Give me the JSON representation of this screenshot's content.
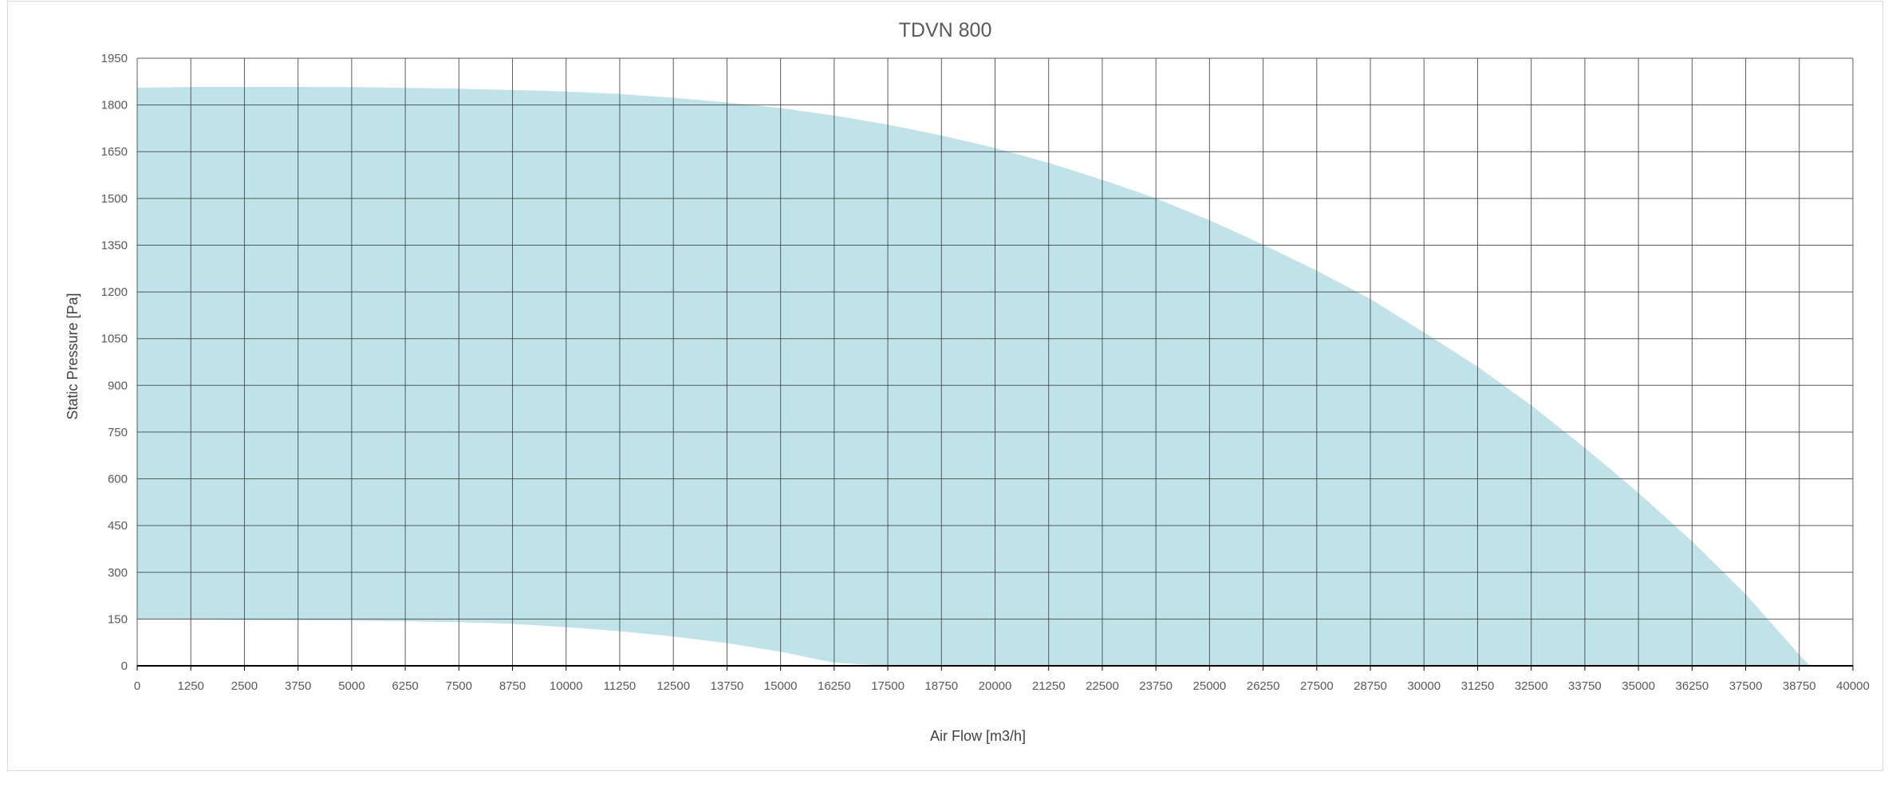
{
  "chart_data": {
    "type": "area",
    "title": "TDVN 800",
    "xlabel": "Air Flow [m3/h]",
    "ylabel": "Static Pressure [Pa]",
    "xlim": [
      0,
      40000
    ],
    "ylim": [
      0,
      1950
    ],
    "x_ticks": [
      0,
      1250,
      2500,
      3750,
      5000,
      6250,
      7500,
      8750,
      10000,
      11250,
      12500,
      13750,
      15000,
      16250,
      17500,
      18750,
      20000,
      21250,
      22500,
      23750,
      25000,
      26250,
      27500,
      28750,
      30000,
      31250,
      32500,
      33750,
      35000,
      36250,
      37500,
      38750,
      40000
    ],
    "y_ticks": [
      0,
      150,
      300,
      450,
      600,
      750,
      900,
      1050,
      1200,
      1350,
      1500,
      1650,
      1800,
      1950
    ],
    "grid": true,
    "fill_color": "#c0e3ea",
    "grid_color": "#404040",
    "series": [
      {
        "role": "upper",
        "x": [
          0,
          1250,
          2500,
          3750,
          5000,
          6250,
          7500,
          8750,
          10000,
          11250,
          12500,
          13750,
          15000,
          16250,
          17500,
          18750,
          20000,
          21250,
          22500,
          23750,
          25000,
          26250,
          27500,
          28750,
          30000,
          31250,
          32500,
          33750,
          35000,
          36250,
          37500,
          38750,
          39000
        ],
        "y": [
          1855,
          1858,
          1858,
          1858,
          1857,
          1855,
          1852,
          1848,
          1843,
          1835,
          1823,
          1808,
          1790,
          1766,
          1737,
          1702,
          1662,
          1614,
          1560,
          1500,
          1430,
          1352,
          1268,
          1178,
          1070,
          960,
          836,
          700,
          555,
          400,
          230,
          35,
          0
        ]
      },
      {
        "role": "lower",
        "x": [
          0,
          1250,
          2500,
          3750,
          5000,
          6250,
          7500,
          8750,
          10000,
          11250,
          12500,
          13750,
          15000,
          16250,
          17500
        ],
        "y": [
          150,
          149,
          147,
          146,
          145,
          143,
          140,
          135,
          124,
          111,
          94,
          73,
          45,
          10,
          0
        ]
      }
    ]
  }
}
